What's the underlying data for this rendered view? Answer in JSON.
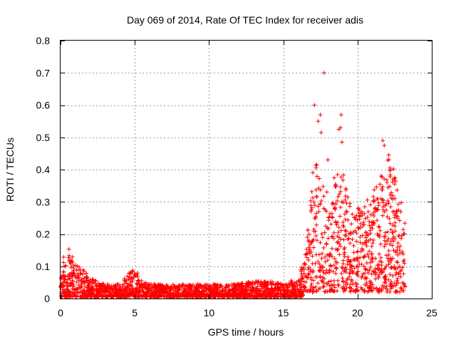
{
  "chart_data": {
    "type": "scatter",
    "title": "Day 069 of 2014, Rate Of TEC Index for receiver adis",
    "xlabel": "GPS time / hours",
    "ylabel": "ROTI / TECUs",
    "xlim": [
      0,
      25
    ],
    "ylim": [
      0,
      0.8
    ],
    "xticks": [
      0,
      5,
      10,
      15,
      20,
      25
    ],
    "xtick_labels": [
      "0",
      "5",
      "10",
      "15",
      "20",
      "25"
    ],
    "yticks": [
      0,
      0.1,
      0.2,
      0.3,
      0.4,
      0.5,
      0.6,
      0.7,
      0.8
    ],
    "ytick_labels": [
      "0",
      "0.1",
      "0.2",
      "0.3",
      "0.4",
      "0.5",
      "0.6",
      "0.7",
      "0.8"
    ],
    "grid": true,
    "marker": "+",
    "color": "#ff0000",
    "series": [
      {
        "name": "ROTI",
        "envelope_hours": [
          0,
          0.5,
          1,
          1.5,
          2,
          3,
          4,
          4.7,
          5,
          5.5,
          6,
          7,
          8,
          9,
          10,
          11,
          12,
          13,
          14,
          15,
          15.5,
          16,
          16.5,
          16.8,
          17,
          17.3,
          17.6,
          18,
          18.5,
          19,
          19.5,
          20,
          20.5,
          21,
          21.5,
          22,
          22.5,
          23,
          23.2
        ],
        "envelope_roti": [
          0.12,
          0.16,
          0.1,
          0.09,
          0.06,
          0.04,
          0.04,
          0.08,
          0.09,
          0.05,
          0.04,
          0.04,
          0.04,
          0.04,
          0.04,
          0.04,
          0.04,
          0.05,
          0.05,
          0.04,
          0.05,
          0.05,
          0.15,
          0.28,
          0.4,
          0.45,
          0.35,
          0.35,
          0.38,
          0.4,
          0.3,
          0.28,
          0.3,
          0.32,
          0.4,
          0.45,
          0.4,
          0.3,
          0.25
        ],
        "outliers": [
          {
            "x": 17.1,
            "y": 0.6
          },
          {
            "x": 17.35,
            "y": 0.55
          },
          {
            "x": 17.5,
            "y": 0.57
          },
          {
            "x": 17.55,
            "y": 0.515
          },
          {
            "x": 17.75,
            "y": 0.7
          },
          {
            "x": 18.0,
            "y": 0.43
          },
          {
            "x": 18.75,
            "y": 0.525
          },
          {
            "x": 18.85,
            "y": 0.53
          },
          {
            "x": 18.9,
            "y": 0.57
          },
          {
            "x": 18.95,
            "y": 0.485
          },
          {
            "x": 21.7,
            "y": 0.49
          },
          {
            "x": 21.8,
            "y": 0.475
          },
          {
            "x": 22.1,
            "y": 0.445
          },
          {
            "x": 22.2,
            "y": 0.4
          },
          {
            "x": 22.5,
            "y": 0.355
          }
        ]
      }
    ]
  }
}
